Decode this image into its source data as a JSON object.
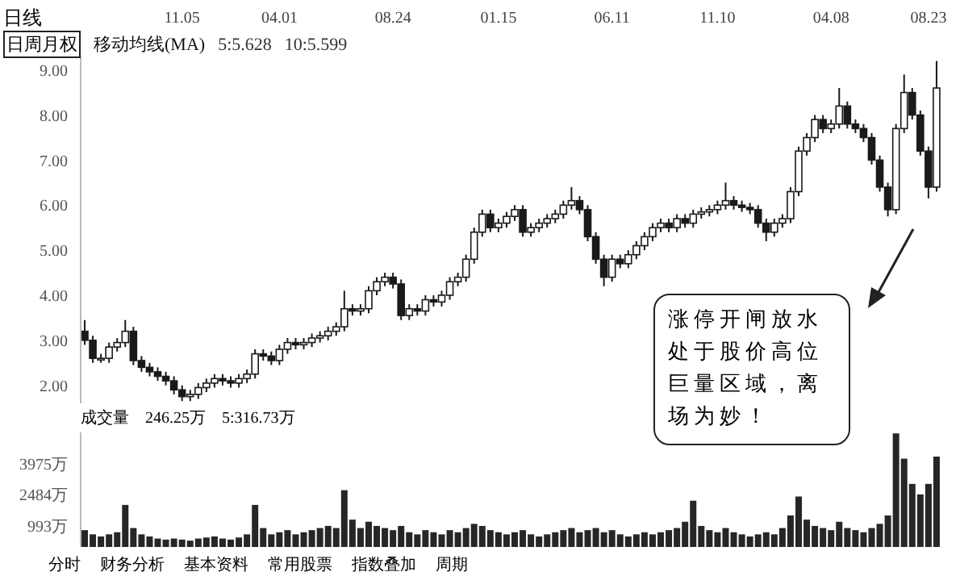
{
  "chart_data": [
    {
      "type": "candlestick",
      "title": "日线",
      "color": "#1a1a1a",
      "categories": [
        null,
        null,
        null,
        null,
        null,
        null,
        null,
        null,
        null,
        null,
        null,
        null,
        "11.05",
        null,
        null,
        null,
        null,
        null,
        null,
        null,
        null,
        null,
        null,
        null,
        "04.01",
        null,
        null,
        null,
        null,
        null,
        null,
        null,
        null,
        null,
        null,
        null,
        null,
        null,
        "08.24",
        null,
        null,
        null,
        null,
        null,
        null,
        null,
        null,
        null,
        null,
        null,
        null,
        "01.15",
        null,
        null,
        null,
        null,
        null,
        null,
        null,
        null,
        null,
        null,
        null,
        null,
        null,
        "06.11",
        null,
        null,
        null,
        null,
        null,
        null,
        null,
        null,
        null,
        null,
        null,
        null,
        "11.10",
        null,
        null,
        null,
        null,
        null,
        null,
        null,
        null,
        null,
        null,
        null,
        null,
        null,
        "04.08",
        null,
        null,
        null,
        null,
        null,
        null,
        null,
        null,
        null,
        null,
        null,
        "08.23",
        null
      ],
      "ohlc": [
        [
          3.2,
          3.45,
          2.9,
          3.0
        ],
        [
          3.0,
          3.1,
          2.5,
          2.6
        ],
        [
          2.6,
          2.7,
          2.5,
          2.6
        ],
        [
          2.6,
          2.95,
          2.5,
          2.85
        ],
        [
          2.85,
          3.05,
          2.75,
          2.95
        ],
        [
          2.95,
          3.45,
          2.85,
          3.2
        ],
        [
          3.2,
          3.3,
          2.45,
          2.55
        ],
        [
          2.55,
          2.65,
          2.3,
          2.4
        ],
        [
          2.4,
          2.5,
          2.2,
          2.3
        ],
        [
          2.3,
          2.4,
          2.1,
          2.2
        ],
        [
          2.2,
          2.3,
          2.0,
          2.1
        ],
        [
          2.1,
          2.2,
          1.8,
          1.9
        ],
        [
          1.9,
          2.0,
          1.65,
          1.75
        ],
        [
          1.75,
          1.9,
          1.65,
          1.8
        ],
        [
          1.8,
          2.05,
          1.7,
          1.95
        ],
        [
          1.95,
          2.15,
          1.85,
          2.05
        ],
        [
          2.05,
          2.25,
          1.95,
          2.15
        ],
        [
          2.15,
          2.25,
          2.0,
          2.1
        ],
        [
          2.1,
          2.2,
          1.95,
          2.05
        ],
        [
          2.05,
          2.25,
          1.95,
          2.15
        ],
        [
          2.15,
          2.35,
          2.05,
          2.25
        ],
        [
          2.25,
          2.8,
          2.15,
          2.7
        ],
        [
          2.7,
          2.8,
          2.55,
          2.65
        ],
        [
          2.65,
          2.75,
          2.45,
          2.55
        ],
        [
          2.55,
          2.9,
          2.45,
          2.8
        ],
        [
          2.8,
          3.05,
          2.7,
          2.95
        ],
        [
          2.95,
          3.05,
          2.8,
          2.9
        ],
        [
          2.9,
          3.05,
          2.8,
          2.95
        ],
        [
          2.95,
          3.15,
          2.85,
          3.05
        ],
        [
          3.05,
          3.2,
          2.95,
          3.1
        ],
        [
          3.1,
          3.3,
          3.0,
          3.2
        ],
        [
          3.2,
          3.4,
          3.1,
          3.3
        ],
        [
          3.3,
          4.1,
          3.2,
          3.7
        ],
        [
          3.7,
          3.8,
          3.55,
          3.65
        ],
        [
          3.65,
          3.8,
          3.55,
          3.7
        ],
        [
          3.7,
          4.2,
          3.6,
          4.1
        ],
        [
          4.1,
          4.4,
          4.0,
          4.3
        ],
        [
          4.3,
          4.5,
          4.2,
          4.4
        ],
        [
          4.4,
          4.5,
          4.15,
          4.25
        ],
        [
          4.25,
          4.35,
          3.45,
          3.55
        ],
        [
          3.55,
          3.8,
          3.45,
          3.7
        ],
        [
          3.7,
          3.8,
          3.55,
          3.65
        ],
        [
          3.65,
          4.0,
          3.55,
          3.9
        ],
        [
          3.9,
          4.0,
          3.75,
          3.85
        ],
        [
          3.85,
          4.1,
          3.75,
          4.0
        ],
        [
          4.0,
          4.4,
          3.9,
          4.3
        ],
        [
          4.3,
          4.5,
          4.2,
          4.4
        ],
        [
          4.4,
          4.9,
          4.3,
          4.8
        ],
        [
          4.8,
          5.5,
          4.7,
          5.4
        ],
        [
          5.4,
          5.9,
          5.3,
          5.8
        ],
        [
          5.8,
          5.9,
          5.4,
          5.5
        ],
        [
          5.5,
          5.7,
          5.4,
          5.6
        ],
        [
          5.6,
          5.85,
          5.5,
          5.75
        ],
        [
          5.75,
          6.0,
          5.65,
          5.9
        ],
        [
          5.9,
          6.0,
          5.3,
          5.4
        ],
        [
          5.4,
          5.6,
          5.3,
          5.5
        ],
        [
          5.5,
          5.7,
          5.4,
          5.6
        ],
        [
          5.6,
          5.8,
          5.5,
          5.7
        ],
        [
          5.7,
          5.9,
          5.6,
          5.8
        ],
        [
          5.8,
          6.1,
          5.7,
          6.0
        ],
        [
          6.0,
          6.4,
          5.9,
          6.1
        ],
        [
          6.1,
          6.2,
          5.8,
          5.9
        ],
        [
          5.9,
          6.0,
          5.2,
          5.3
        ],
        [
          5.3,
          5.4,
          4.7,
          4.8
        ],
        [
          4.8,
          4.9,
          4.2,
          4.4
        ],
        [
          4.4,
          4.9,
          4.3,
          4.8
        ],
        [
          4.8,
          4.9,
          4.6,
          4.7
        ],
        [
          4.7,
          5.0,
          4.6,
          4.9
        ],
        [
          4.9,
          5.2,
          4.8,
          5.1
        ],
        [
          5.1,
          5.4,
          5.0,
          5.3
        ],
        [
          5.3,
          5.6,
          5.2,
          5.5
        ],
        [
          5.5,
          5.7,
          5.4,
          5.6
        ],
        [
          5.6,
          5.7,
          5.4,
          5.5
        ],
        [
          5.5,
          5.8,
          5.4,
          5.7
        ],
        [
          5.7,
          5.8,
          5.5,
          5.6
        ],
        [
          5.6,
          5.9,
          5.5,
          5.8
        ],
        [
          5.8,
          5.95,
          5.7,
          5.85
        ],
        [
          5.85,
          6.0,
          5.75,
          5.9
        ],
        [
          5.9,
          6.1,
          5.8,
          6.0
        ],
        [
          6.0,
          6.5,
          5.9,
          6.1
        ],
        [
          6.1,
          6.2,
          5.9,
          6.0
        ],
        [
          6.0,
          6.1,
          5.85,
          5.95
        ],
        [
          5.95,
          6.05,
          5.8,
          5.9
        ],
        [
          5.9,
          6.0,
          5.5,
          5.6
        ],
        [
          5.6,
          5.7,
          5.2,
          5.4
        ],
        [
          5.4,
          5.7,
          5.3,
          5.6
        ],
        [
          5.6,
          5.8,
          5.5,
          5.7
        ],
        [
          5.7,
          6.4,
          5.6,
          6.3
        ],
        [
          6.3,
          7.3,
          6.2,
          7.2
        ],
        [
          7.2,
          7.6,
          7.1,
          7.5
        ],
        [
          7.5,
          8.0,
          7.4,
          7.9
        ],
        [
          7.9,
          8.0,
          7.6,
          7.7
        ],
        [
          7.7,
          7.9,
          7.6,
          7.8
        ],
        [
          7.8,
          8.6,
          7.7,
          8.2
        ],
        [
          8.2,
          8.3,
          7.7,
          7.8
        ],
        [
          7.8,
          7.9,
          7.6,
          7.7
        ],
        [
          7.7,
          7.8,
          7.4,
          7.5
        ],
        [
          7.5,
          7.6,
          6.9,
          7.0
        ],
        [
          7.0,
          7.1,
          6.3,
          6.4
        ],
        [
          6.4,
          6.5,
          5.75,
          5.9
        ],
        [
          5.9,
          7.8,
          5.8,
          7.7
        ],
        [
          7.7,
          8.9,
          7.6,
          8.5
        ],
        [
          8.5,
          8.6,
          7.9,
          8.0
        ],
        [
          8.0,
          8.1,
          7.1,
          7.2
        ],
        [
          7.2,
          7.3,
          6.15,
          6.4
        ],
        [
          6.4,
          9.2,
          6.3,
          8.6
        ]
      ],
      "ylim": [
        1.6,
        9.3
      ],
      "yticks": [
        {
          "value": 2,
          "label": "2.00"
        },
        {
          "value": 3,
          "label": "3.00"
        },
        {
          "value": 4,
          "label": "4.00"
        },
        {
          "value": 5,
          "label": "5.00"
        },
        {
          "value": 6,
          "label": "6.00"
        },
        {
          "value": 7,
          "label": "7.00"
        },
        {
          "value": 8,
          "label": "8.00"
        },
        {
          "value": 9,
          "label": "9.00"
        }
      ],
      "annotations": [
        "日周月权",
        "移动均线(MA)",
        "5:5.628",
        "10:5.599",
        "涨停开闸放水处于股价高位巨量区域，离场为妙！",
        "分时",
        "财务分析",
        "基本资料",
        "常用股票",
        "指数叠加",
        "周期"
      ]
    },
    {
      "type": "bar",
      "title": "成交量",
      "color": "#262626",
      "tick_labels": "y",
      "categories": [
        null,
        null,
        null,
        null,
        null,
        null,
        null,
        null,
        null,
        null,
        null,
        null,
        null,
        null,
        null,
        null,
        null,
        null,
        null,
        null,
        null,
        null,
        null,
        null,
        null,
        null,
        null,
        null,
        null,
        null,
        null,
        null,
        null,
        null,
        null,
        null,
        null,
        null,
        null,
        null,
        null,
        null,
        null,
        null,
        null,
        null,
        null,
        null,
        null,
        null,
        null,
        null,
        null,
        null,
        null,
        null,
        null,
        null,
        null,
        null,
        null,
        null,
        null,
        null,
        null,
        null,
        null,
        null,
        null,
        null,
        null,
        null,
        null,
        null,
        null,
        null,
        null,
        null,
        null,
        null,
        null,
        null,
        null,
        null,
        null,
        null,
        null,
        null,
        null,
        null,
        null,
        null,
        null,
        null,
        null,
        null,
        null,
        null,
        null,
        null,
        null,
        null,
        null,
        null,
        null,
        null
      ],
      "values": [
        800,
        600,
        500,
        600,
        700,
        2000,
        900,
        600,
        500,
        400,
        350,
        400,
        350,
        300,
        400,
        450,
        500,
        400,
        350,
        450,
        600,
        2000,
        900,
        600,
        700,
        800,
        600,
        700,
        800,
        900,
        1000,
        900,
        2700,
        1300,
        900,
        1200,
        1000,
        900,
        800,
        1000,
        700,
        600,
        800,
        700,
        600,
        800,
        700,
        900,
        1100,
        1000,
        800,
        700,
        600,
        700,
        800,
        600,
        500,
        600,
        700,
        800,
        900,
        700,
        800,
        900,
        700,
        800,
        600,
        500,
        600,
        700,
        600,
        700,
        800,
        900,
        1200,
        2200,
        1000,
        800,
        700,
        900,
        700,
        600,
        500,
        600,
        700,
        600,
        900,
        1500,
        2400,
        1300,
        1000,
        900,
        800,
        1200,
        900,
        800,
        700,
        900,
        1100,
        1500,
        5400,
        4200,
        3000,
        2500,
        3000,
        4300
      ],
      "ylim": [
        0,
        5450
      ],
      "yticks": [
        {
          "value": 993,
          "label": "993万"
        },
        {
          "value": 2484,
          "label": "2484万"
        },
        {
          "value": 3975,
          "label": "3975万"
        }
      ],
      "annotations": [
        "246.25万",
        "5:316.73万"
      ]
    }
  ]
}
